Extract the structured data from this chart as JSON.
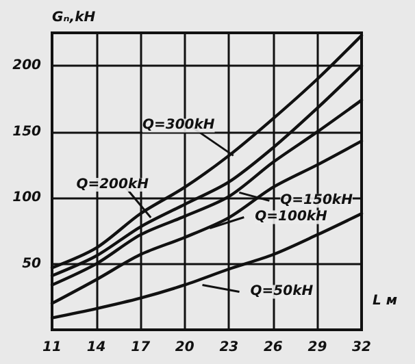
{
  "chart_data": {
    "type": "line",
    "xlabel": "L м",
    "ylabel": "Gₙ,kH",
    "x": [
      11,
      14,
      17,
      20,
      23,
      26,
      29,
      32
    ],
    "series": [
      {
        "color": "#111111",
        "values": [
          47,
          62,
          88,
          108,
          132,
          160,
          190,
          223
        ]
      },
      {
        "color": "#111111",
        "values": [
          41,
          56,
          78,
          95,
          112,
          138,
          168,
          200
        ]
      },
      {
        "color": "#111111",
        "values": [
          34,
          50,
          72,
          86,
          101,
          127,
          150,
          174
        ]
      },
      {
        "color": "#111111",
        "values": [
          20,
          38,
          57,
          70,
          85,
          108,
          125,
          143
        ]
      },
      {
        "color": "#111111",
        "values": [
          9,
          16,
          24,
          34,
          46,
          57,
          72,
          88
        ]
      }
    ],
    "annotations": [
      {
        "text": "Q=300kH",
        "x": 23.3,
        "y": 132
      },
      {
        "text": "Q=200kH",
        "x": 17.7,
        "y": 85
      },
      {
        "text": "Q=150kH",
        "x": 23.7,
        "y": 104
      },
      {
        "text": "Q=100kH",
        "x": 21.7,
        "y": 77
      },
      {
        "text": "Q=50kH",
        "x": 21.2,
        "y": 34
      }
    ],
    "xlim": [
      11,
      32
    ],
    "xticks": [
      11,
      14,
      17,
      20,
      23,
      26,
      29,
      32
    ],
    "ylim": [
      0,
      225
    ],
    "yticks": [
      {
        "value": 0,
        "label": null
      },
      50,
      100,
      150,
      200
    ],
    "grid": true,
    "marker": "none",
    "line_style": "solid"
  }
}
